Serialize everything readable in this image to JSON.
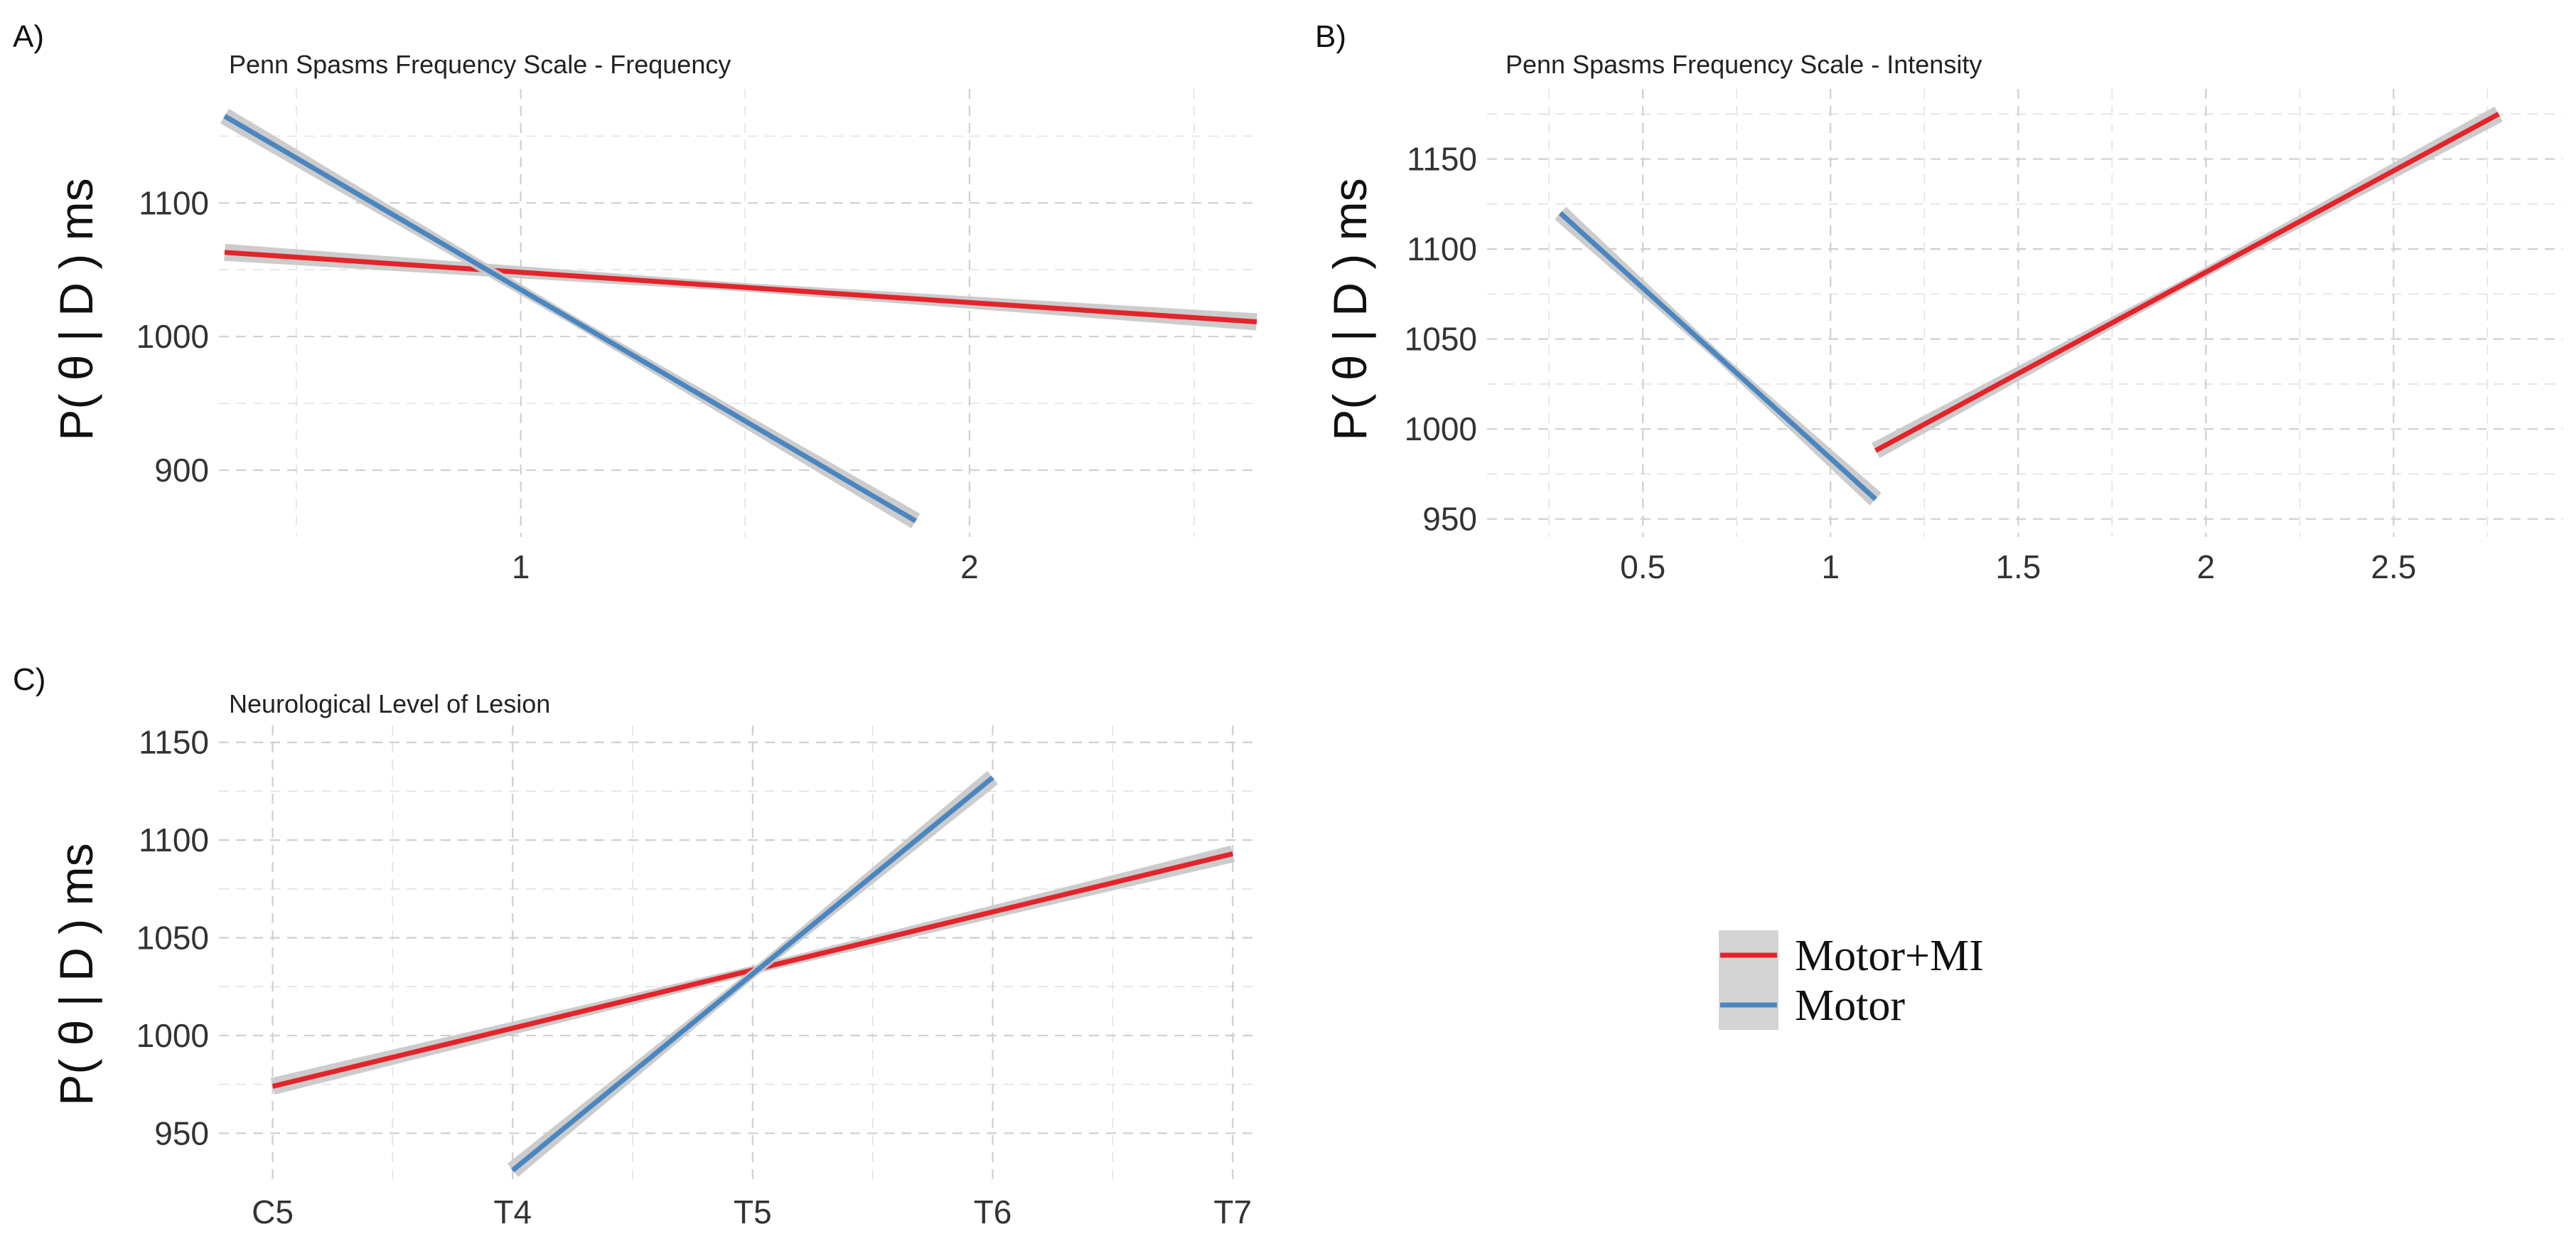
{
  "legend": {
    "items": [
      {
        "label": "Motor+MI",
        "color": "#e3242b"
      },
      {
        "label": "Motor",
        "color": "#4a86c0"
      }
    ]
  },
  "chart_data": [
    {
      "panel": "A)",
      "type": "line",
      "title": "Penn Spasms Frequency Scale - Frequency",
      "xlabel": "",
      "ylabel": "P( θ | D ) ms",
      "xlim": [
        0.34,
        2.64
      ],
      "ylim": [
        850,
        1180
      ],
      "xticks": [
        1,
        2
      ],
      "xtick_labels": [
        "1",
        "2"
      ],
      "yticks": [
        900,
        1000,
        1100
      ],
      "ytick_labels": [
        "900",
        "1000",
        "1100"
      ],
      "grid": true,
      "series": [
        {
          "name": "Motor+MI",
          "color": "#e3242b",
          "x": [
            0.34,
            2.64
          ],
          "y": [
            1063,
            1011
          ]
        },
        {
          "name": "Motor",
          "color": "#4a86c0",
          "x": [
            0.34,
            1.88
          ],
          "y": [
            1165,
            862
          ]
        }
      ]
    },
    {
      "panel": "B)",
      "type": "line",
      "title": "Penn Spasms Frequency Scale - Intensity",
      "xlabel": "",
      "ylabel": "P( θ | D ) ms",
      "xlim": [
        0.1,
        2.95
      ],
      "ylim": [
        940,
        1185
      ],
      "xticks": [
        0.5,
        1,
        1.5,
        2,
        2.5
      ],
      "xtick_labels": [
        "0.5",
        "1",
        "1.5",
        "2",
        "2.5"
      ],
      "yticks": [
        950,
        1000,
        1050,
        1100,
        1150
      ],
      "ytick_labels": [
        "950",
        "1000",
        "1050",
        "1100",
        "1150"
      ],
      "grid": true,
      "series": [
        {
          "name": "Motor+MI",
          "color": "#e3242b",
          "x": [
            1.12,
            2.78
          ],
          "y": [
            988,
            1175
          ]
        },
        {
          "name": "Motor",
          "color": "#4a86c0",
          "x": [
            0.28,
            1.12
          ],
          "y": [
            1120,
            961
          ]
        }
      ]
    },
    {
      "panel": "C)",
      "type": "line",
      "title": "Neurological Level of Lesion",
      "xlabel": "",
      "ylabel": "P( θ | D ) ms",
      "xlim": [
        0.8,
        5.1
      ],
      "ylim": [
        925,
        1155
      ],
      "xticks": [
        1,
        2,
        3,
        4,
        5
      ],
      "xtick_labels": [
        "C5",
        "T4",
        "T5",
        "T6",
        "T7"
      ],
      "yticks": [
        950,
        1000,
        1050,
        1100,
        1150
      ],
      "ytick_labels": [
        "950",
        "1000",
        "1050",
        "1100",
        "1150"
      ],
      "grid": true,
      "series": [
        {
          "name": "Motor+MI",
          "color": "#e3242b",
          "x": [
            1,
            5
          ],
          "y": [
            974,
            1093
          ]
        },
        {
          "name": "Motor",
          "color": "#4a86c0",
          "x": [
            2,
            4
          ],
          "y": [
            931,
            1132
          ]
        }
      ]
    }
  ]
}
